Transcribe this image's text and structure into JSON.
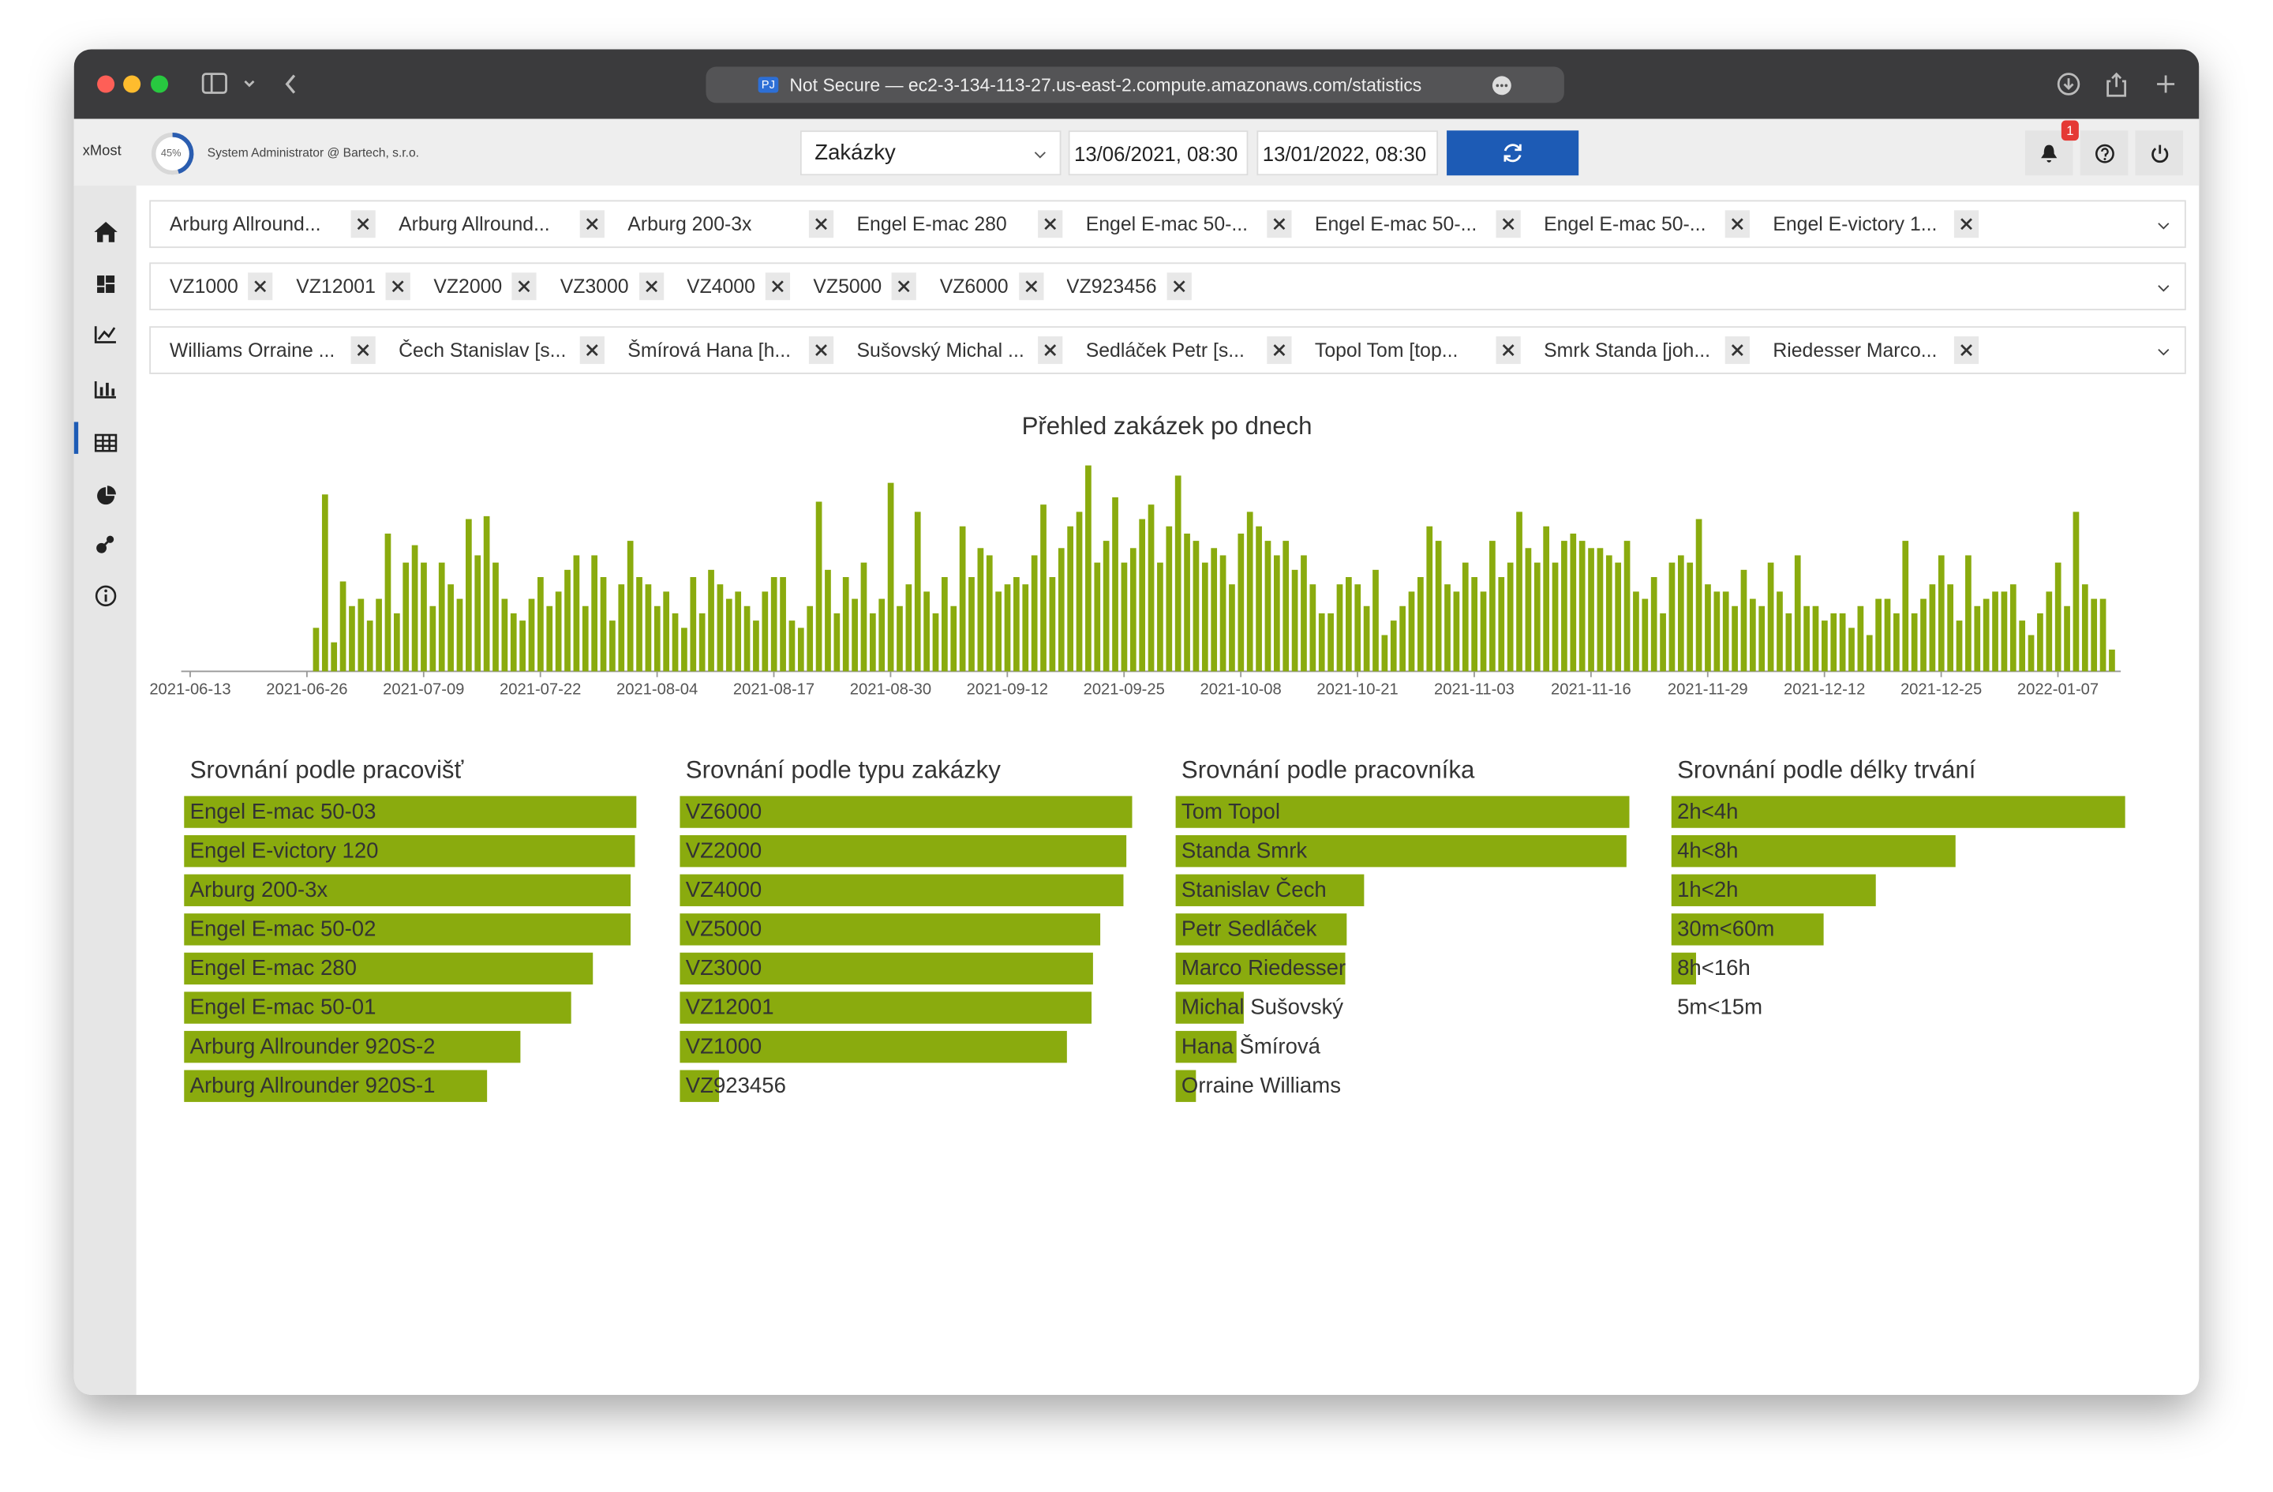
{
  "browser": {
    "site_icon": "PJ",
    "address": "Not Secure — ec2-3-134-113-27.us-east-2.compute.amazonaws.com/statistics"
  },
  "header": {
    "brand": "xMost",
    "progress": "45%",
    "user": "System Administrator @ Bartech, s.r.o.",
    "select": "Zakázky",
    "date_from": "13/06/2021, 08:30",
    "date_to": "13/01/2022, 08:30",
    "notification_count": "1"
  },
  "filters": [
    [
      "Arburg Allround...",
      "Arburg Allround...",
      "Arburg 200-3x",
      "Engel E-mac 280",
      "Engel E-mac 50-...",
      "Engel E-mac 50-...",
      "Engel E-mac 50-...",
      "Engel E-victory 1..."
    ],
    [
      "VZ1000",
      "VZ12001",
      "VZ2000",
      "VZ3000",
      "VZ4000",
      "VZ5000",
      "VZ6000",
      "VZ923456"
    ],
    [
      "Williams Orraine ...",
      "Čech Stanislav [s...",
      "Šmírová Hana [h...",
      "Sušovský Michal ...",
      "Sedláček Petr [s...",
      "Topol Tom [top...",
      "Smrk Standa [joh...",
      "Riedesser Marco..."
    ]
  ],
  "chart_data": [
    {
      "type": "bar",
      "title": "Přehled zakázek po dnech",
      "color": "#8aab0e",
      "x": [
        "2021-06-27",
        "2021-06-28",
        "2021-06-29",
        "2021-06-30",
        "2021-07-01",
        "2021-07-02",
        "2021-07-03",
        "2021-07-04",
        "2021-07-05",
        "2021-07-06",
        "2021-07-07",
        "2021-07-08",
        "2021-07-09",
        "2021-07-10",
        "2021-07-11",
        "2021-07-12",
        "2021-07-13",
        "2021-07-14",
        "2021-07-15",
        "2021-07-16",
        "2021-07-17",
        "2021-07-18",
        "2021-07-19",
        "2021-07-20",
        "2021-07-21",
        "2021-07-22",
        "2021-07-23",
        "2021-07-24",
        "2021-07-25",
        "2021-07-26",
        "2021-07-27",
        "2021-07-28",
        "2021-07-29",
        "2021-07-30",
        "2021-07-31",
        "2021-08-01",
        "2021-08-02",
        "2021-08-03",
        "2021-08-04",
        "2021-08-05",
        "2021-08-06",
        "2021-08-07",
        "2021-08-08",
        "2021-08-09",
        "2021-08-10",
        "2021-08-11",
        "2021-08-12",
        "2021-08-13",
        "2021-08-14",
        "2021-08-15",
        "2021-08-16",
        "2021-08-17",
        "2021-08-18",
        "2021-08-19",
        "2021-08-20",
        "2021-08-21",
        "2021-08-22",
        "2021-08-23",
        "2021-08-24",
        "2021-08-25",
        "2021-08-26",
        "2021-08-27",
        "2021-08-28",
        "2021-08-29",
        "2021-08-30",
        "2021-08-31",
        "2021-09-01",
        "2021-09-02",
        "2021-09-03",
        "2021-09-04",
        "2021-09-05",
        "2021-09-06",
        "2021-09-07",
        "2021-09-08",
        "2021-09-09",
        "2021-09-10",
        "2021-09-11",
        "2021-09-12",
        "2021-09-13",
        "2021-09-14",
        "2021-09-15",
        "2021-09-16",
        "2021-09-17",
        "2021-09-18",
        "2021-09-19",
        "2021-09-20",
        "2021-09-21",
        "2021-09-22",
        "2021-09-23",
        "2021-09-24",
        "2021-09-25",
        "2021-09-26",
        "2021-09-27",
        "2021-09-28",
        "2021-09-29",
        "2021-09-30",
        "2021-10-01",
        "2021-10-02",
        "2021-10-03",
        "2021-10-04",
        "2021-10-05",
        "2021-10-06",
        "2021-10-07",
        "2021-10-08",
        "2021-10-09",
        "2021-10-10",
        "2021-10-11",
        "2021-10-12",
        "2021-10-13",
        "2021-10-14",
        "2021-10-15",
        "2021-10-16",
        "2021-10-17",
        "2021-10-18",
        "2021-10-19",
        "2021-10-20",
        "2021-10-21",
        "2021-10-22",
        "2021-10-23",
        "2021-10-24",
        "2021-10-25",
        "2021-10-26",
        "2021-10-27",
        "2021-10-28",
        "2021-10-29",
        "2021-10-30",
        "2021-10-31",
        "2021-11-01",
        "2021-11-02",
        "2021-11-03",
        "2021-11-04",
        "2021-11-05",
        "2021-11-06",
        "2021-11-07",
        "2021-11-08",
        "2021-11-09",
        "2021-11-10",
        "2021-11-11",
        "2021-11-12",
        "2021-11-13",
        "2021-11-14",
        "2021-11-15",
        "2021-11-16",
        "2021-11-17",
        "2021-11-18",
        "2021-11-19",
        "2021-11-20",
        "2021-11-21",
        "2021-11-22",
        "2021-11-23",
        "2021-11-24",
        "2021-11-25",
        "2021-11-26",
        "2021-11-27",
        "2021-11-28",
        "2021-11-29",
        "2021-11-30",
        "2021-12-01",
        "2021-12-02",
        "2021-12-03",
        "2021-12-04",
        "2021-12-05",
        "2021-12-06",
        "2021-12-07",
        "2021-12-08",
        "2021-12-09",
        "2021-12-10",
        "2021-12-11",
        "2021-12-12",
        "2021-12-13",
        "2021-12-14",
        "2021-12-15",
        "2021-12-16",
        "2021-12-17",
        "2021-12-18",
        "2021-12-19",
        "2021-12-20",
        "2021-12-21",
        "2021-12-22",
        "2021-12-23",
        "2021-12-24",
        "2021-12-25",
        "2021-12-26",
        "2021-12-27",
        "2021-12-28",
        "2021-12-29",
        "2021-12-30",
        "2021-12-31",
        "2022-01-01",
        "2022-01-02",
        "2022-01-03",
        "2022-01-04",
        "2022-01-05",
        "2022-01-06",
        "2022-01-07",
        "2022-01-08",
        "2022-01-09",
        "2022-01-10",
        "2022-01-11",
        "2022-01-12",
        "2022-01-13"
      ],
      "values": [
        30,
        122,
        20,
        62,
        45,
        50,
        35,
        50,
        95,
        40,
        75,
        87,
        75,
        45,
        75,
        60,
        50,
        105,
        80,
        107,
        75,
        50,
        40,
        35,
        50,
        65,
        45,
        55,
        70,
        80,
        45,
        80,
        65,
        35,
        60,
        90,
        65,
        60,
        45,
        55,
        40,
        30,
        65,
        40,
        70,
        60,
        50,
        55,
        45,
        35,
        55,
        65,
        65,
        35,
        30,
        45,
        117,
        70,
        40,
        65,
        50,
        75,
        40,
        50,
        130,
        45,
        60,
        110,
        55,
        40,
        65,
        45,
        100,
        65,
        85,
        80,
        55,
        60,
        65,
        60,
        80,
        115,
        65,
        85,
        100,
        110,
        142,
        75,
        90,
        120,
        75,
        85,
        105,
        115,
        75,
        100,
        135,
        95,
        90,
        75,
        85,
        80,
        60,
        95,
        110,
        100,
        90,
        80,
        90,
        70,
        80,
        60,
        40,
        40,
        60,
        65,
        60,
        45,
        70,
        25,
        35,
        45,
        55,
        65,
        100,
        90,
        60,
        55,
        75,
        65,
        55,
        90,
        65,
        75,
        110,
        85,
        75,
        100,
        75,
        90,
        95,
        90,
        85,
        85,
        80,
        75,
        90,
        55,
        50,
        65,
        40,
        75,
        80,
        75,
        105,
        60,
        55,
        55,
        45,
        70,
        50,
        45,
        75,
        55,
        40,
        80,
        45,
        45,
        35,
        40,
        40,
        30,
        45,
        25,
        50,
        50,
        40,
        90,
        40,
        50,
        60,
        80,
        60,
        35,
        80,
        45,
        50,
        55,
        55,
        60,
        35,
        25,
        40,
        55,
        75,
        45,
        110,
        60,
        50,
        50,
        15
      ],
      "xlim": [
        "2021-06-12",
        "2022-01-14"
      ],
      "xticks": [
        "2021-06-13",
        "2021-06-26",
        "2021-07-09",
        "2021-07-22",
        "2021-08-04",
        "2021-08-17",
        "2021-08-30",
        "2021-09-12",
        "2021-09-25",
        "2021-10-08",
        "2021-10-21",
        "2021-11-03",
        "2021-11-16",
        "2021-11-29",
        "2021-12-12",
        "2021-12-25",
        "2022-01-07"
      ],
      "ylim": [
        0,
        150
      ]
    },
    {
      "type": "hbar",
      "title": "Srovnání podle pracovišť",
      "color": "#8aab0e",
      "categories": [
        "Engel E-mac 50-03",
        "Engel E-victory 120",
        "Arburg 200-3x",
        "Engel E-mac 50-02",
        "Engel E-mac 280",
        "Engel E-mac 50-01",
        "Arburg Allrounder 920S-2",
        "Arburg Allrounder 920S-1"
      ],
      "values": [
        312,
        311,
        308,
        308,
        282,
        267,
        232,
        209
      ],
      "xlim": [
        0,
        313
      ]
    },
    {
      "type": "hbar",
      "title": "Srovnání podle typu zakázky",
      "color": "#8aab0e",
      "categories": [
        "VZ6000",
        "VZ2000",
        "VZ4000",
        "VZ5000",
        "VZ3000",
        "VZ12001",
        "VZ1000",
        "VZ923456"
      ],
      "values": [
        312,
        308,
        306,
        290,
        285,
        284,
        267,
        27
      ],
      "xlim": [
        0,
        313
      ]
    },
    {
      "type": "hbar",
      "title": "Srovnání podle pracovníka",
      "color": "#8aab0e",
      "categories": [
        "Tom Topol",
        "Standa Smrk",
        "Stanislav Čech",
        "Petr  Sedláček",
        "Marco Riedesser",
        "Michal Sušovský",
        "Hana Šmírová",
        "Orraine Williams"
      ],
      "values": [
        313,
        311,
        130,
        118,
        117,
        47,
        42,
        14
      ],
      "xlim": [
        0,
        313
      ]
    },
    {
      "type": "hbar",
      "title": "Srovnání podle délky trvání",
      "color": "#8aab0e",
      "categories": [
        "2h<4h",
        "4h<8h",
        "1h<2h",
        "30m<60m",
        "8h<16h",
        "5m<15m"
      ],
      "values": [
        313,
        196,
        141,
        105,
        17,
        0
      ],
      "xlim": [
        0,
        313
      ]
    }
  ]
}
